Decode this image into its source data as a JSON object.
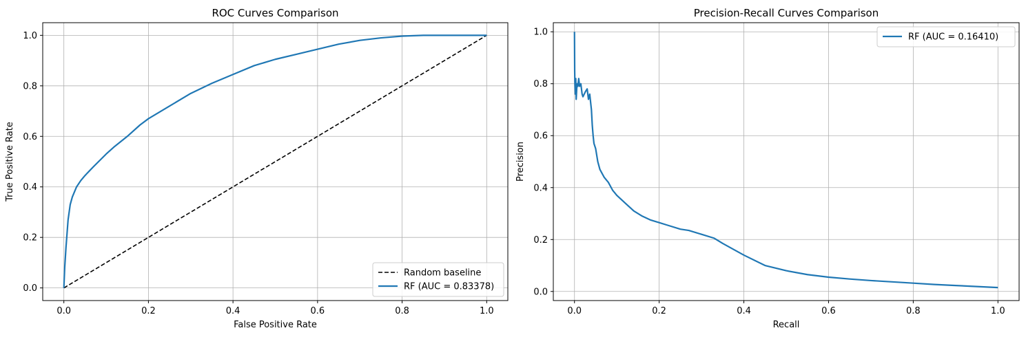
{
  "chart_data": [
    {
      "type": "line",
      "title": "ROC Curves Comparison",
      "xlabel": "False Positive Rate",
      "ylabel": "True Positive Rate",
      "xlim": [
        -0.05,
        1.05
      ],
      "ylim": [
        -0.05,
        1.05
      ],
      "xticks": [
        0.0,
        0.2,
        0.4,
        0.6,
        0.8,
        1.0
      ],
      "yticks": [
        0.0,
        0.2,
        0.4,
        0.6,
        0.8,
        1.0
      ],
      "tick_labels": [
        "0.0",
        "0.2",
        "0.4",
        "0.6",
        "0.8",
        "1.0"
      ],
      "grid": true,
      "legend_position": "lower-right",
      "series": [
        {
          "name": "Random baseline",
          "color": "#000000",
          "dashed": true,
          "x": [
            0.0,
            1.0
          ],
          "y": [
            0.0,
            1.0
          ]
        },
        {
          "name": "RF (AUC = 0.83378)",
          "color": "#1f77b4",
          "dashed": false,
          "x": [
            0.0,
            0.002,
            0.005,
            0.01,
            0.015,
            0.02,
            0.03,
            0.04,
            0.05,
            0.07,
            0.1,
            0.12,
            0.15,
            0.18,
            0.2,
            0.25,
            0.3,
            0.35,
            0.4,
            0.45,
            0.5,
            0.55,
            0.6,
            0.65,
            0.7,
            0.75,
            0.8,
            0.85,
            0.87,
            0.9,
            0.95,
            1.0
          ],
          "y": [
            0.0,
            0.08,
            0.16,
            0.27,
            0.33,
            0.36,
            0.4,
            0.425,
            0.445,
            0.48,
            0.53,
            0.56,
            0.6,
            0.645,
            0.67,
            0.72,
            0.77,
            0.81,
            0.845,
            0.88,
            0.905,
            0.925,
            0.945,
            0.965,
            0.98,
            0.99,
            0.997,
            1.0,
            1.0,
            1.0,
            1.0,
            1.0
          ]
        }
      ]
    },
    {
      "type": "line",
      "title": "Precision-Recall Curves Comparison",
      "xlabel": "Recall",
      "ylabel": "Precision",
      "xlim": [
        -0.05,
        1.05
      ],
      "ylim": [
        -0.035,
        1.035
      ],
      "xticks": [
        0.0,
        0.2,
        0.4,
        0.6,
        0.8,
        1.0
      ],
      "yticks": [
        0.0,
        0.2,
        0.4,
        0.6,
        0.8,
        1.0
      ],
      "tick_labels": [
        "0.0",
        "0.2",
        "0.4",
        "0.6",
        "0.8",
        "1.0"
      ],
      "grid": true,
      "legend_position": "upper-right",
      "series": [
        {
          "name": "RF (AUC = 0.16410)",
          "color": "#1f77b4",
          "dashed": false,
          "x": [
            0.0,
            0.0005,
            0.001,
            0.002,
            0.003,
            0.004,
            0.006,
            0.008,
            0.01,
            0.012,
            0.015,
            0.018,
            0.02,
            0.023,
            0.026,
            0.03,
            0.033,
            0.036,
            0.04,
            0.042,
            0.044,
            0.046,
            0.05,
            0.055,
            0.06,
            0.07,
            0.08,
            0.09,
            0.1,
            0.12,
            0.14,
            0.16,
            0.18,
            0.2,
            0.22,
            0.25,
            0.27,
            0.3,
            0.33,
            0.35,
            0.4,
            0.45,
            0.5,
            0.55,
            0.6,
            0.65,
            0.7,
            0.75,
            0.8,
            0.85,
            0.9,
            0.95,
            1.0
          ],
          "y": [
            1.0,
            0.85,
            0.8,
            0.76,
            0.82,
            0.74,
            0.8,
            0.79,
            0.82,
            0.79,
            0.8,
            0.76,
            0.75,
            0.76,
            0.77,
            0.78,
            0.74,
            0.76,
            0.7,
            0.64,
            0.6,
            0.57,
            0.55,
            0.5,
            0.47,
            0.44,
            0.42,
            0.39,
            0.37,
            0.34,
            0.31,
            0.29,
            0.275,
            0.265,
            0.255,
            0.24,
            0.235,
            0.22,
            0.205,
            0.185,
            0.14,
            0.1,
            0.08,
            0.065,
            0.055,
            0.048,
            0.042,
            0.037,
            0.032,
            0.027,
            0.023,
            0.019,
            0.015
          ]
        }
      ]
    }
  ]
}
